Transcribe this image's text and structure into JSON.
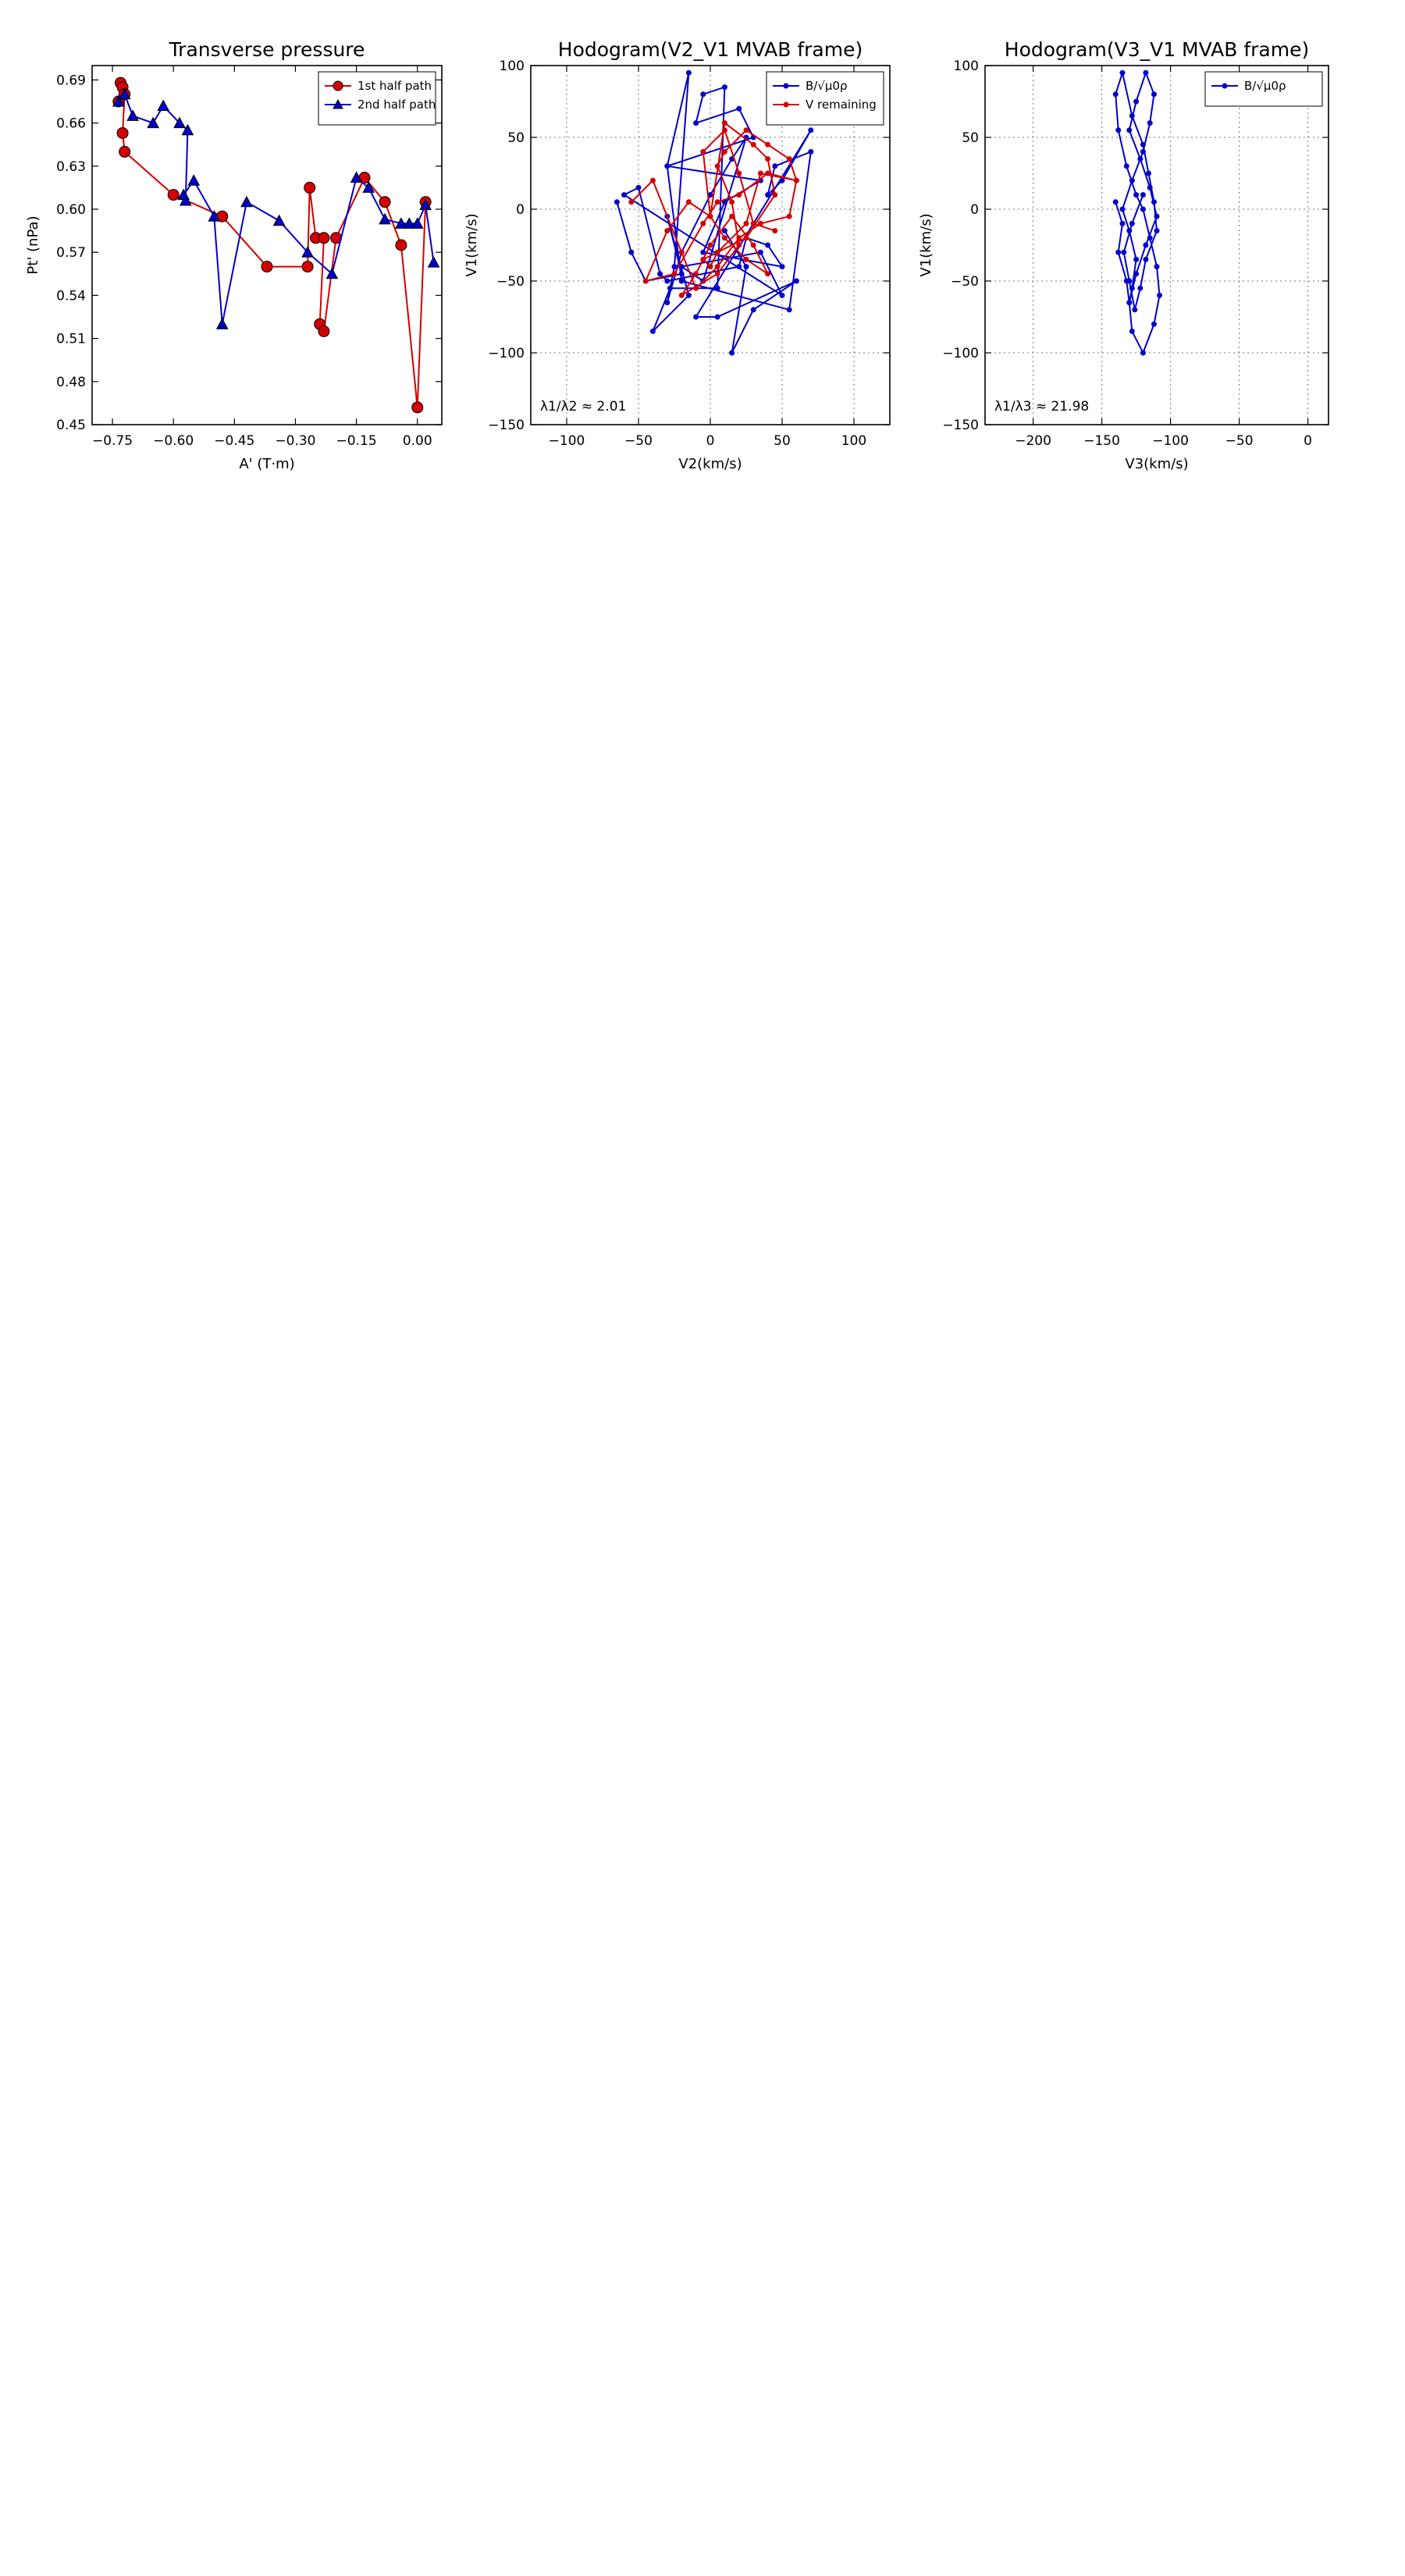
{
  "figure": {
    "name": "solar-wind-flux-rope-analysis"
  },
  "chart_data": [
    {
      "id": "transverse-pressure",
      "type": "line",
      "title": "Transverse pressure",
      "xlabel": "A' (T·m)",
      "ylabel": "Pt' (nPa)",
      "xlim": [
        -0.8,
        0.06
      ],
      "ylim": [
        0.45,
        0.7
      ],
      "xticks": [
        -0.75,
        -0.6,
        -0.45,
        -0.3,
        -0.15,
        0.0
      ],
      "xtick_labels": [
        "−0.75",
        "−0.60",
        "−0.45",
        "−0.30",
        "−0.15",
        "0.00"
      ],
      "yticks": [
        0.45,
        0.48,
        0.51,
        0.54,
        0.57,
        0.6,
        0.63,
        0.66,
        0.69
      ],
      "ytick_labels": [
        "0.45",
        "0.48",
        "0.51",
        "0.54",
        "0.57",
        "0.60",
        "0.63",
        "0.66",
        "0.69"
      ],
      "grid": false,
      "legend": "top-right",
      "series": [
        {
          "name": "1st half path",
          "color": "#d40000",
          "marker": "circle",
          "x": [
            -0.735,
            -0.73,
            -0.725,
            -0.72,
            -0.725,
            -0.72,
            -0.6,
            -0.48,
            -0.37,
            -0.27,
            -0.265,
            -0.25,
            -0.23,
            -0.24,
            -0.23,
            -0.2,
            -0.13,
            -0.08,
            -0.04,
            0.0,
            0.02
          ],
          "y": [
            0.675,
            0.688,
            0.685,
            0.68,
            0.653,
            0.64,
            0.61,
            0.595,
            0.56,
            0.56,
            0.615,
            0.58,
            0.58,
            0.52,
            0.515,
            0.58,
            0.622,
            0.605,
            0.575,
            0.462,
            0.605
          ]
        },
        {
          "name": "2nd half path",
          "color": "#0000c8",
          "marker": "triangle",
          "x": [
            -0.735,
            -0.72,
            -0.7,
            -0.65,
            -0.625,
            -0.585,
            -0.565,
            -0.57,
            -0.575,
            -0.55,
            -0.5,
            -0.48,
            -0.42,
            -0.34,
            -0.27,
            -0.21,
            -0.15,
            -0.12,
            -0.08,
            -0.04,
            -0.02,
            0.0,
            0.02,
            0.04
          ],
          "y": [
            0.675,
            0.68,
            0.665,
            0.66,
            0.672,
            0.66,
            0.655,
            0.606,
            0.61,
            0.62,
            0.595,
            0.52,
            0.605,
            0.592,
            0.57,
            0.555,
            0.622,
            0.615,
            0.593,
            0.59,
            0.59,
            0.59,
            0.603,
            0.563
          ]
        }
      ]
    },
    {
      "id": "hodogram-v2-v1-mvab",
      "type": "scatter",
      "title": "Hodogram(V2_V1 MVAB frame)",
      "xlabel": "V2(km/s)",
      "ylabel": "V1(km/s)",
      "xlim": [
        -125,
        125
      ],
      "ylim": [
        -150,
        100
      ],
      "xticks": [
        -100,
        -50,
        0,
        50,
        100
      ],
      "xtick_labels": [
        "−100",
        "−50",
        "0",
        "50",
        "100"
      ],
      "yticks": [
        -150,
        -100,
        -50,
        0,
        50,
        100
      ],
      "ytick_labels": [
        "−150",
        "−100",
        "−50",
        "0",
        "50",
        "100"
      ],
      "grid": true,
      "legend": "top-right",
      "annotation": "λ1/λ2 ≈ 2.01",
      "series": [
        {
          "name": "B/√μ0ρ",
          "color": "#0000c8",
          "x": [
            -65,
            -55,
            -45,
            -20,
            -30,
            -15,
            -40,
            -28,
            5,
            10,
            -5,
            -10,
            20,
            30,
            -30,
            -15,
            -25,
            -30,
            -20,
            0,
            15,
            25,
            -5,
            -20,
            35,
            50,
            -60,
            -50,
            -35,
            -30,
            20,
            25,
            40,
            50,
            -5,
            10,
            35,
            -30,
            -20,
            55,
            70,
            45,
            40,
            50,
            70,
            -10,
            5,
            60,
            30,
            15,
            25,
            10
          ],
          "y": [
            5,
            -30,
            -50,
            -45,
            -5,
            -60,
            -85,
            -55,
            -55,
            85,
            80,
            60,
            70,
            50,
            30,
            95,
            -40,
            -65,
            -30,
            10,
            35,
            50,
            -50,
            -40,
            -30,
            -60,
            10,
            15,
            -45,
            -50,
            -40,
            -20,
            -25,
            -40,
            -30,
            5,
            20,
            30,
            -50,
            -70,
            40,
            30,
            10,
            20,
            55,
            -75,
            -75,
            -50,
            -70,
            -100,
            -40,
            -15
          ]
        },
        {
          "name": "V remaining",
          "color": "#d40000",
          "x": [
            -55,
            -40,
            -20,
            -10,
            5,
            20,
            35,
            55,
            60,
            40,
            20,
            5,
            -5,
            -25,
            -45,
            -30,
            -15,
            0,
            10,
            25,
            40,
            30,
            15,
            0,
            -10,
            -20,
            5,
            20,
            15,
            5,
            10,
            25,
            40,
            55,
            60,
            35,
            25,
            5,
            0,
            -5,
            25,
            45,
            40,
            30,
            10,
            0,
            -5,
            10,
            20,
            30,
            45
          ],
          "y": [
            5,
            20,
            -30,
            -55,
            -40,
            -20,
            -10,
            -5,
            20,
            25,
            10,
            5,
            -10,
            -45,
            -50,
            -15,
            5,
            -5,
            -20,
            -35,
            -45,
            -25,
            -5,
            -25,
            -45,
            -60,
            -45,
            -25,
            5,
            30,
            40,
            55,
            45,
            35,
            20,
            25,
            -10,
            -30,
            -40,
            -35,
            -20,
            10,
            35,
            45,
            60,
            -5,
            40,
            55,
            25,
            -10,
            -15
          ]
        }
      ]
    },
    {
      "id": "hodogram-v3-v1-mvab",
      "type": "scatter",
      "title": "Hodogram(V3_V1 MVAB frame)",
      "xlabel": "V3(km/s)",
      "ylabel": "V1(km/s)",
      "xlim": [
        -235,
        15
      ],
      "ylim": [
        -150,
        100
      ],
      "xticks": [
        -200,
        -150,
        -100,
        -50,
        0
      ],
      "xtick_labels": [
        "−200",
        "−150",
        "−100",
        "−50",
        "0"
      ],
      "yticks": [
        -150,
        -100,
        -50,
        0,
        50,
        100
      ],
      "ytick_labels": [
        "−150",
        "−100",
        "−50",
        "0",
        "50",
        "100"
      ],
      "grid": true,
      "legend": "top-right",
      "annotation": "λ1/λ3 ≈ 21.98",
      "series": [
        {
          "name": "B/√μ0ρ",
          "color": "#0000c8",
          "x": [
            -140,
            -135,
            -138,
            -132,
            -130,
            -128,
            -125,
            -130,
            -135,
            -128,
            -120,
            -115,
            -112,
            -118,
            -125,
            -130,
            -122,
            -115,
            -110,
            -118,
            -125,
            -130,
            -128,
            -120,
            -112,
            -108,
            -110,
            -115,
            -120,
            -125,
            -132,
            -138,
            -140,
            -135,
            -128,
            -120,
            -116,
            -112,
            -110,
            -118,
            -122,
            -126,
            -130,
            -134,
            -128,
            -120
          ],
          "y": [
            5,
            -10,
            -30,
            -50,
            -65,
            -55,
            -35,
            -15,
            0,
            20,
            40,
            60,
            80,
            95,
            75,
            55,
            35,
            15,
            -5,
            -25,
            -45,
            -65,
            -85,
            -100,
            -80,
            -60,
            -40,
            -20,
            0,
            10,
            30,
            55,
            80,
            95,
            65,
            45,
            25,
            5,
            -15,
            -35,
            -55,
            -70,
            -50,
            -30,
            -10,
            10
          ],
          "connect": true
        }
      ]
    }
  ],
  "chart_data_extra": {}
}
